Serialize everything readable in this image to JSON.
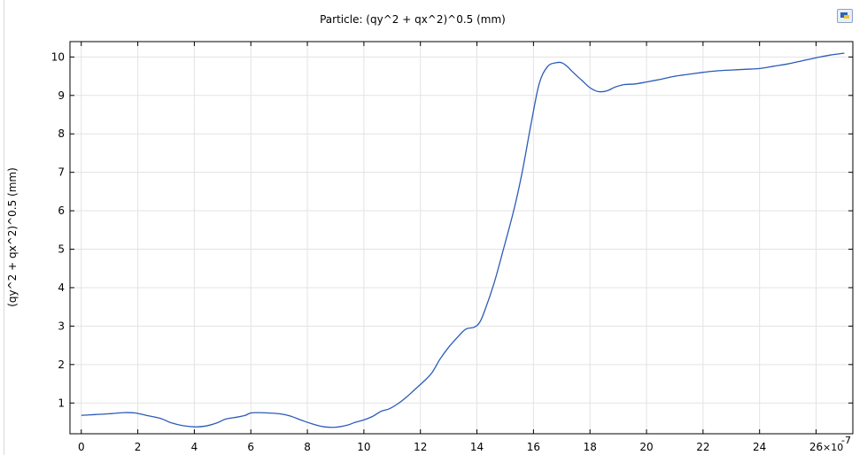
{
  "chart_data": {
    "type": "line",
    "title": "Particle: (qy^2 + qx^2)^0.5 (mm)",
    "xlabel": "",
    "ylabel": "(qy^2 + qx^2)^0.5 (mm)",
    "x_multiplier_label": "×10",
    "x_multiplier_exponent": "-7",
    "xlim": [
      -0.4,
      27.3
    ],
    "ylim": [
      0.2,
      10.4
    ],
    "x_ticks": [
      0,
      2,
      4,
      6,
      8,
      10,
      12,
      14,
      16,
      18,
      20,
      22,
      24,
      26
    ],
    "y_ticks": [
      1,
      2,
      3,
      4,
      5,
      6,
      7,
      8,
      9,
      10
    ],
    "grid": true,
    "line_color": "#2b5bb8",
    "series": [
      {
        "x": [
          0,
          0.5,
          1.0,
          1.5,
          1.9,
          2.3,
          2.8,
          3.2,
          3.6,
          4.0,
          4.4,
          4.8,
          5.1,
          5.5,
          5.8,
          6.0,
          6.3,
          6.6,
          7.0,
          7.4,
          7.8,
          8.2,
          8.6,
          9.0,
          9.4,
          9.7,
          10.0,
          10.3,
          10.6,
          10.9,
          11.2,
          11.5,
          11.8,
          12.1,
          12.4,
          12.7,
          13.0,
          13.3,
          13.6,
          13.9,
          14.1,
          14.3,
          14.6,
          14.9,
          15.3,
          15.6,
          15.9,
          16.2,
          16.5,
          16.8,
          17.0,
          17.2,
          17.4,
          17.7,
          18.0,
          18.3,
          18.6,
          18.9,
          19.2,
          19.6,
          20.0,
          20.5,
          21.0,
          21.5,
          22.0,
          22.5,
          23.0,
          23.5,
          24.0,
          24.5,
          25.0,
          25.5,
          26.0,
          26.5,
          27.0
        ],
        "y": [
          0.68,
          0.7,
          0.72,
          0.75,
          0.74,
          0.68,
          0.6,
          0.48,
          0.41,
          0.38,
          0.4,
          0.48,
          0.58,
          0.63,
          0.68,
          0.74,
          0.75,
          0.74,
          0.72,
          0.66,
          0.55,
          0.45,
          0.38,
          0.37,
          0.42,
          0.5,
          0.56,
          0.65,
          0.78,
          0.85,
          0.98,
          1.15,
          1.35,
          1.55,
          1.78,
          2.15,
          2.45,
          2.7,
          2.92,
          2.97,
          3.1,
          3.45,
          4.1,
          4.9,
          6.0,
          7.0,
          8.2,
          9.3,
          9.75,
          9.85,
          9.85,
          9.75,
          9.6,
          9.4,
          9.2,
          9.1,
          9.12,
          9.22,
          9.28,
          9.3,
          9.35,
          9.42,
          9.5,
          9.55,
          9.6,
          9.64,
          9.66,
          9.68,
          9.7,
          9.76,
          9.82,
          9.9,
          9.98,
          10.05,
          10.1
        ]
      }
    ]
  }
}
